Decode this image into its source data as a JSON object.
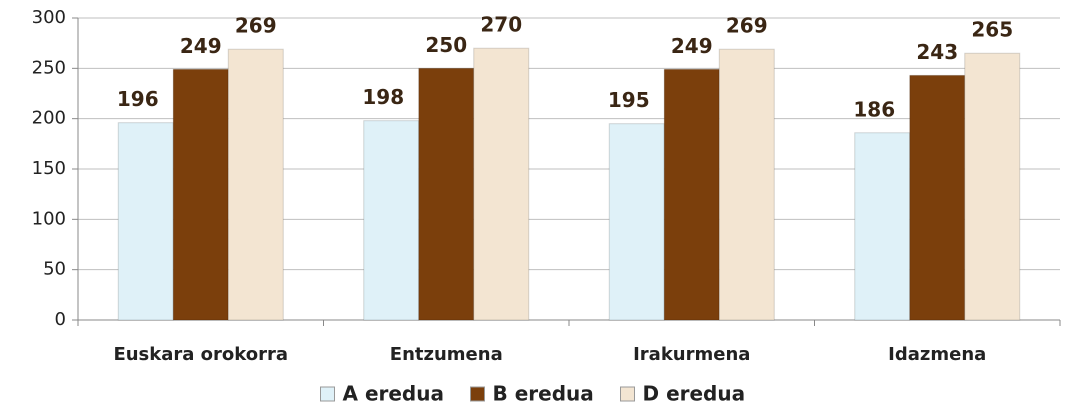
{
  "chart_data": {
    "type": "bar",
    "categories": [
      "Euskara orokorra",
      "Entzumena",
      "Irakurmena",
      "Idazmena"
    ],
    "series": [
      {
        "name": "A eredua",
        "color": "#dff1f8",
        "values": [
          196,
          198,
          195,
          186
        ]
      },
      {
        "name": "B eredua",
        "color": "#7b3f0c",
        "values": [
          249,
          250,
          249,
          243
        ]
      },
      {
        "name": "D eredua",
        "color": "#f3e5d2",
        "values": [
          269,
          270,
          269,
          265
        ]
      }
    ],
    "ylim": [
      0,
      300
    ],
    "yticks": [
      0,
      50,
      100,
      150,
      200,
      250,
      300
    ],
    "grid": true,
    "legend": "bottom"
  }
}
